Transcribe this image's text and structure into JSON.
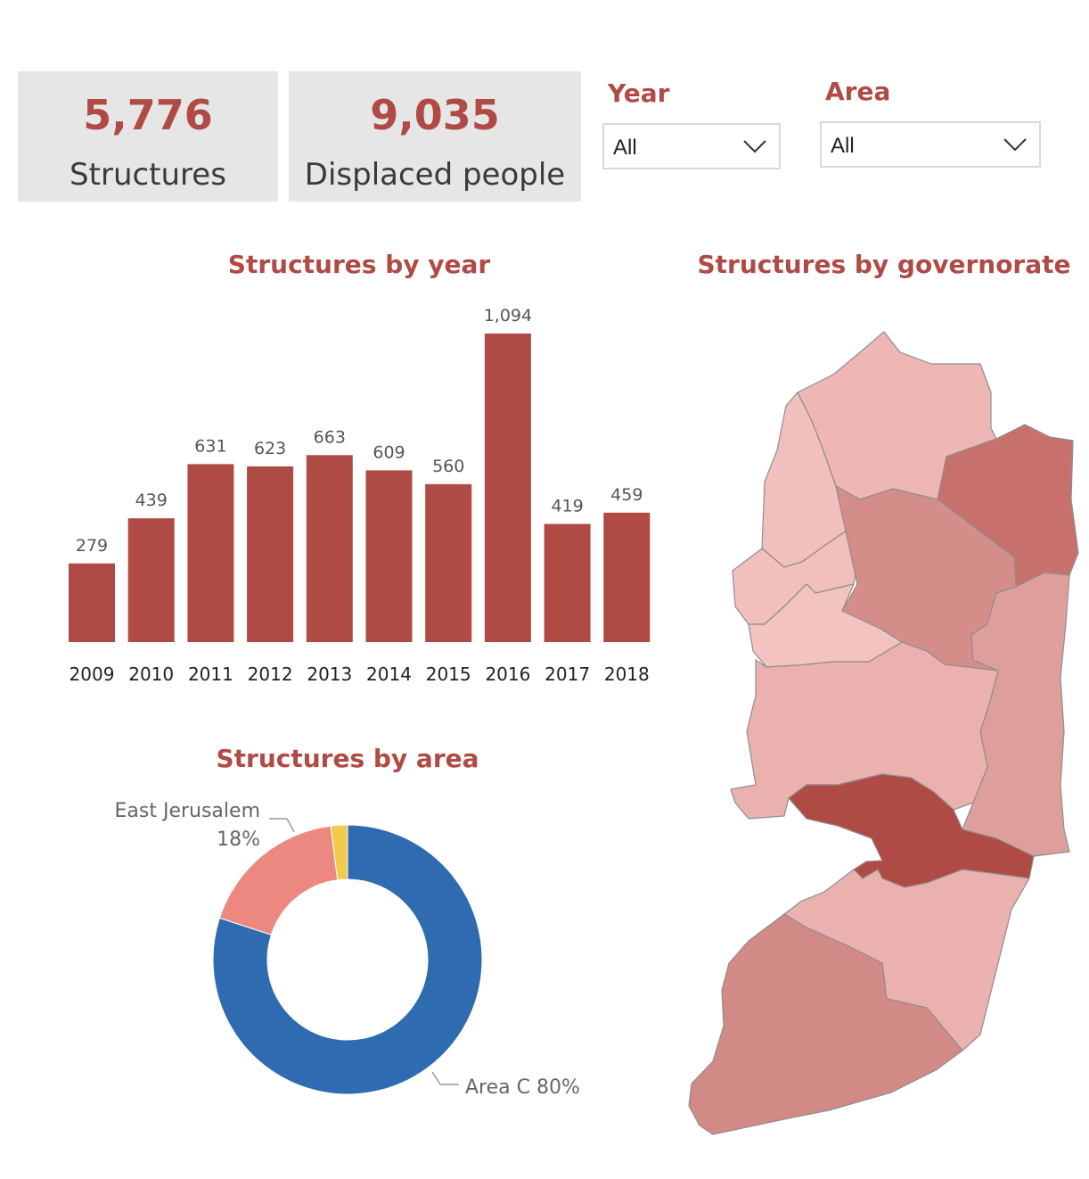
{
  "kpis": {
    "structures": {
      "value": "5,776",
      "label": "Structures"
    },
    "displaced": {
      "value": "9,035",
      "label": "Displaced people"
    }
  },
  "slicers": {
    "year": {
      "title": "Year",
      "value": "All"
    },
    "area": {
      "title": "Area",
      "value": "All"
    }
  },
  "colors": {
    "accent": "#b04a45",
    "bar": "#b04a45",
    "kpi_bg": "#e6e6e6",
    "area_c": "#2e6bb0",
    "east_jerusalem": "#ec8880",
    "other": "#f2cb4c"
  },
  "icons": {
    "dropdown": "chevron-down-icon"
  },
  "chart_data": [
    {
      "type": "bar",
      "title": "Structures by year",
      "categories": [
        "2009",
        "2010",
        "2011",
        "2012",
        "2013",
        "2014",
        "2015",
        "2016",
        "2017",
        "2018"
      ],
      "values": [
        279,
        439,
        631,
        623,
        663,
        609,
        560,
        1094,
        419,
        459
      ],
      "value_labels": [
        "279",
        "439",
        "631",
        "623",
        "663",
        "609",
        "560",
        "1,094",
        "419",
        "459"
      ],
      "ylim": [
        0,
        1094
      ],
      "grid": false
    },
    {
      "type": "pie",
      "style": "donut",
      "title": "Structures by area",
      "slices": [
        {
          "label": "Area C",
          "pct_label": "80%",
          "value": 80,
          "color": "#2e6bb0"
        },
        {
          "label": "East Jerusalem",
          "pct_label": "18%",
          "value": 18,
          "color": "#ec8880"
        },
        {
          "label": "",
          "pct_label": "",
          "value": 2,
          "color": "#f2cb4c"
        }
      ]
    },
    {
      "type": "heatmap",
      "style": "choropleth map",
      "title": "Structures by governorate"
    }
  ]
}
